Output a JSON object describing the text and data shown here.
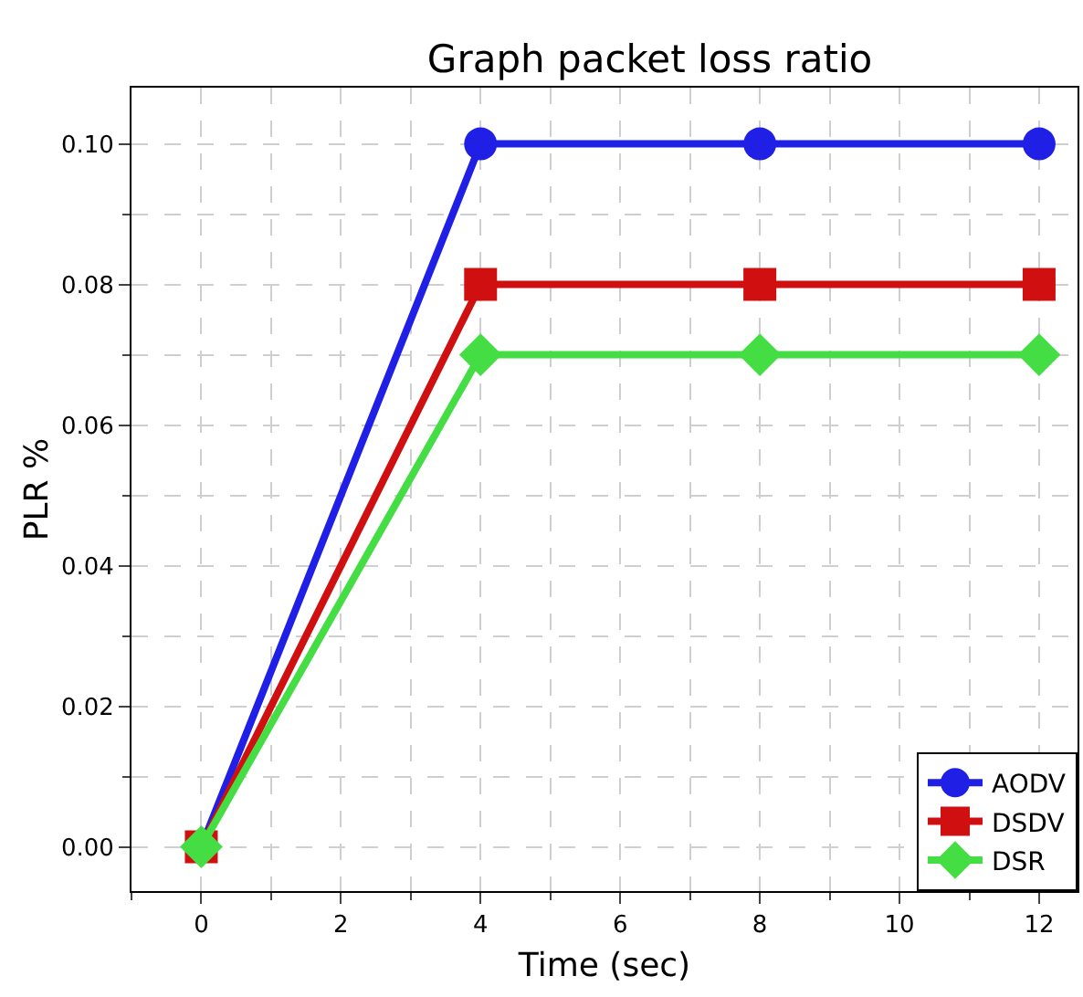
{
  "chart_data": {
    "type": "line",
    "title": "Graph packet loss ratio",
    "xlabel": "Time (sec)",
    "ylabel": "PLR %",
    "x": [
      0,
      4,
      8,
      12
    ],
    "series": [
      {
        "name": "AODV",
        "color": "#1f1fe6",
        "values": [
          0,
          0.1,
          0.1,
          0.1
        ],
        "marker": "circle"
      },
      {
        "name": "DSDV",
        "color": "#d01010",
        "values": [
          0,
          0.08,
          0.08,
          0.08
        ],
        "marker": "square"
      },
      {
        "name": "DSR",
        "color": "#44dd44",
        "values": [
          0,
          0.07,
          0.07,
          0.07
        ],
        "marker": "diamond"
      }
    ],
    "xlim": [
      -1,
      12.55
    ],
    "ylim": [
      -0.0063,
      0.108
    ],
    "xticks": [
      0,
      2,
      4,
      6,
      8,
      10,
      12
    ],
    "yticks": [
      {
        "value": 0,
        "label": "0.00"
      },
      {
        "value": 0.02,
        "label": "0.02"
      },
      {
        "value": 0.04,
        "label": "0.04"
      },
      {
        "value": 0.06,
        "label": "0.06"
      },
      {
        "value": 0.08,
        "label": "0.08"
      },
      {
        "value": 0.1,
        "label": "0.10"
      }
    ],
    "grid": true,
    "legend": "bottom right",
    "line_style": "solid"
  }
}
